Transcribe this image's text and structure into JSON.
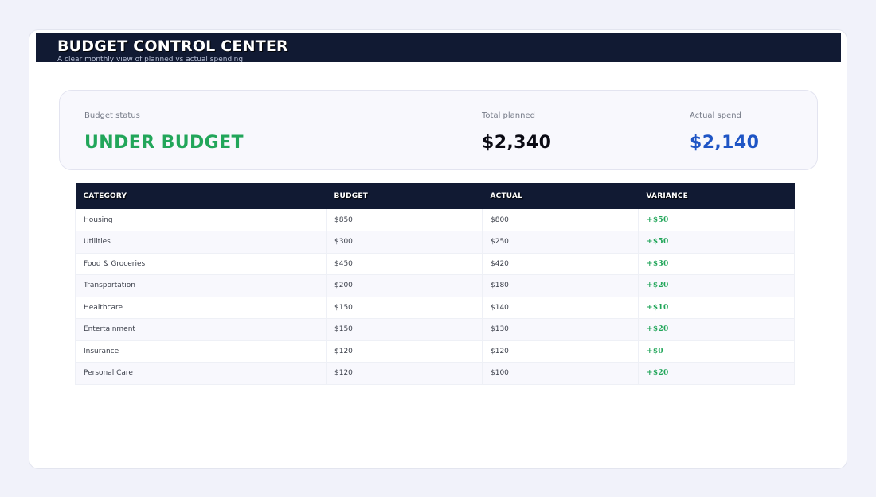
{
  "header": {
    "title": "BUDGET CONTROL CENTER",
    "subtitle": "A clear monthly view of planned vs actual spending"
  },
  "summary": {
    "status_label": "Budget status",
    "status_value": "UNDER BUDGET",
    "planned_label": "Total planned",
    "planned_value": "$2,340",
    "actual_label": "Actual spend",
    "actual_value": "$2,140"
  },
  "colors": {
    "header_bg": "#111a33",
    "status_green": "#22a65a",
    "actual_blue": "#1f55c5",
    "planned_black": "#0b0b14",
    "page_bg": "#f1f2fa"
  },
  "table": {
    "columns": [
      "CATEGORY",
      "BUDGET",
      "ACTUAL",
      "VARIANCE"
    ],
    "rows": [
      [
        "Housing",
        "$850",
        "$800",
        "+$50"
      ],
      [
        "Utilities",
        "$300",
        "$250",
        "+$50"
      ],
      [
        "Food & Groceries",
        "$450",
        "$420",
        "+$30"
      ],
      [
        "Transportation",
        "$200",
        "$180",
        "+$20"
      ],
      [
        "Healthcare",
        "$150",
        "$140",
        "+$10"
      ],
      [
        "Entertainment",
        "$150",
        "$130",
        "+$20"
      ],
      [
        "Insurance",
        "$120",
        "$120",
        "+$0"
      ],
      [
        "Personal Care",
        "$120",
        "$100",
        "+$20"
      ]
    ]
  }
}
